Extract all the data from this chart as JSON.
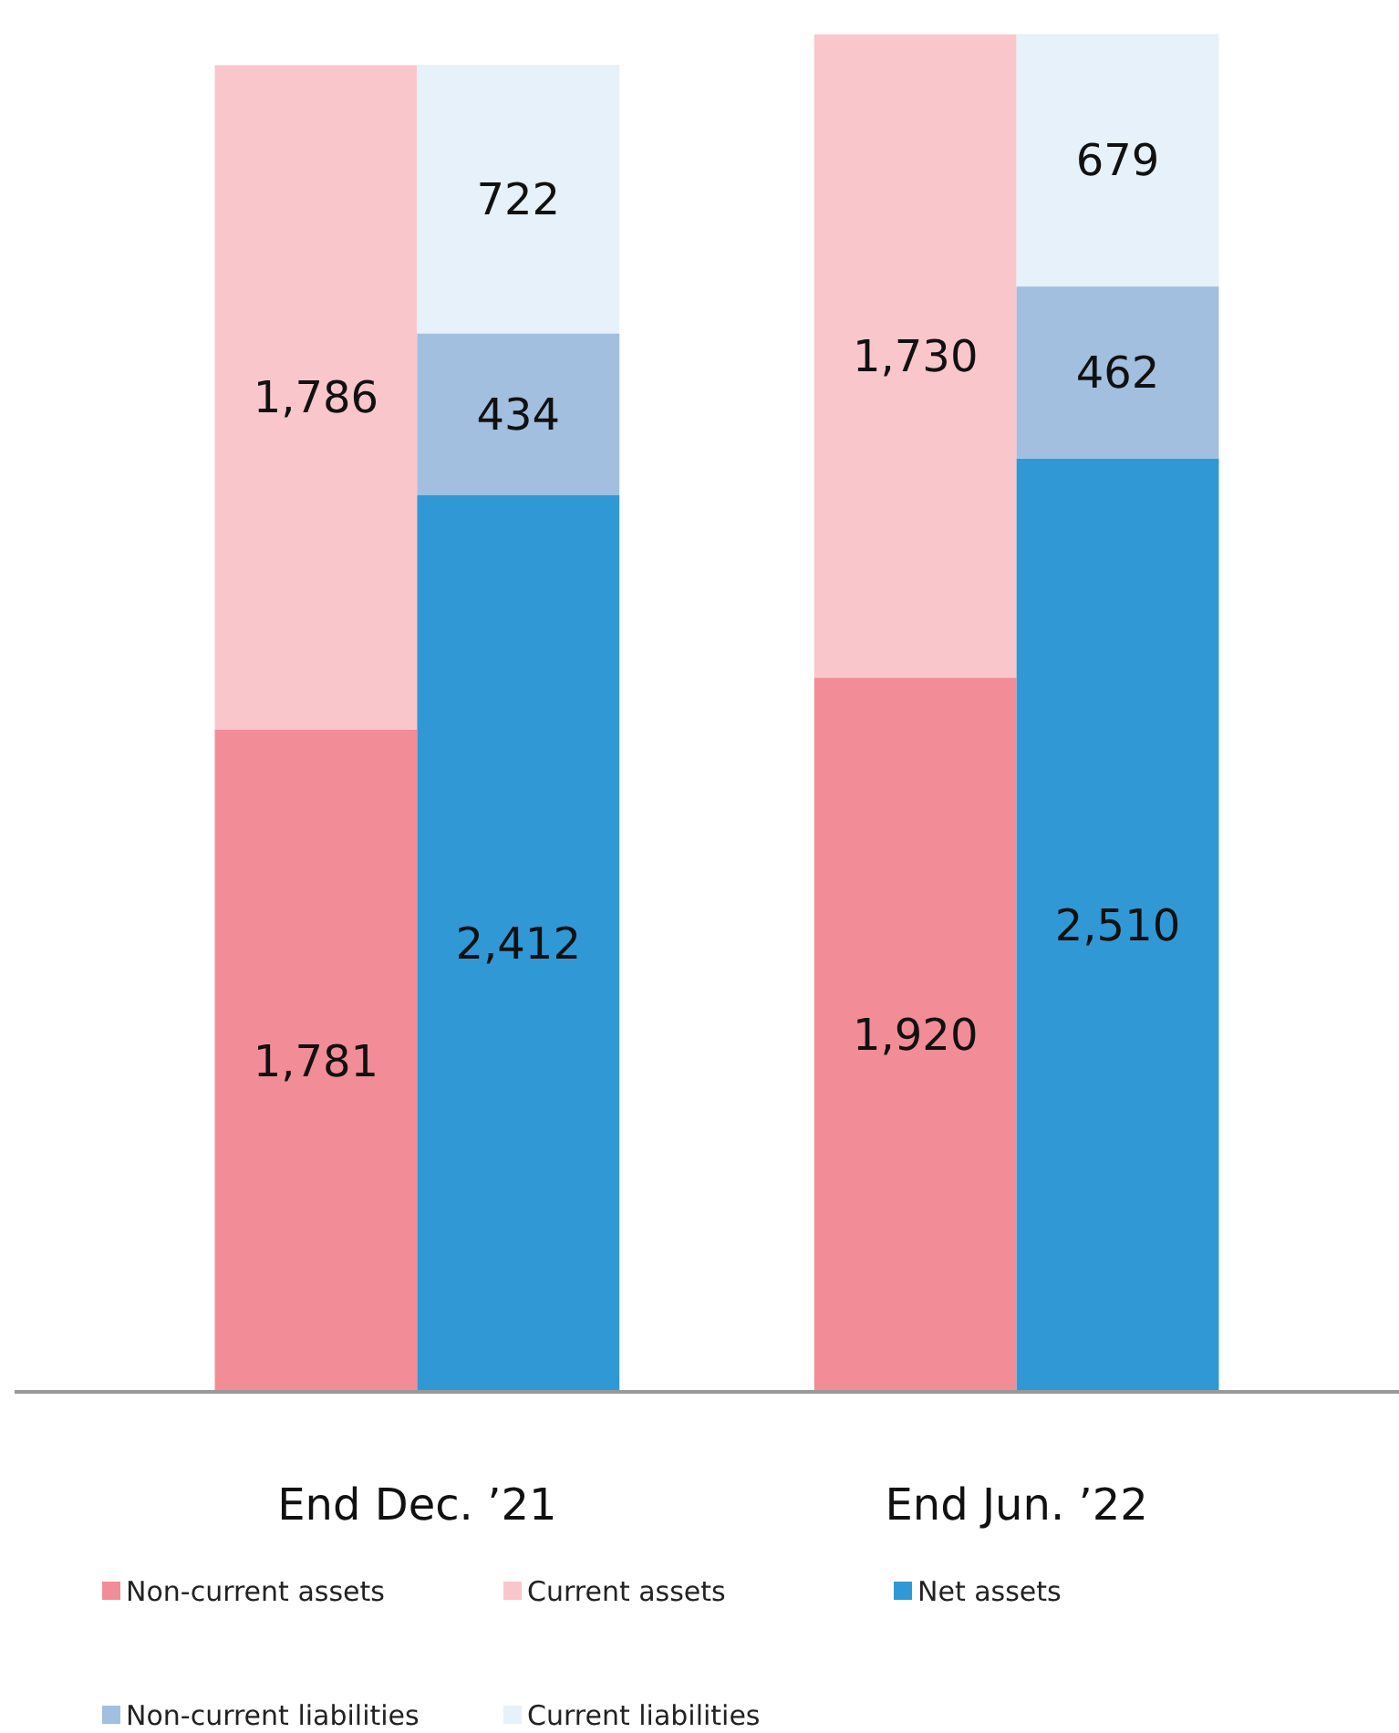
{
  "chart_data": {
    "type": "bar",
    "stacked": true,
    "legend": "bottom",
    "categories": [
      null,
      null,
      null,
      null
    ],
    "annotations": [
      "End Dec. ’21",
      "End Jun. ’22"
    ],
    "series": [
      {
        "name": "Non-current assets",
        "color": "#f28c96",
        "values": [
          1781,
          null,
          1920,
          null
        ],
        "value_labels": [
          "1,781",
          null,
          "1,920",
          null
        ]
      },
      {
        "name": "Current assets",
        "color": "#f9c6cc",
        "values": [
          1786,
          null,
          1730,
          null
        ],
        "value_labels": [
          "1,786",
          null,
          "1,730",
          null
        ]
      },
      {
        "name": "Net assets",
        "color": "#3099d5",
        "values": [
          null,
          2412,
          null,
          2510
        ],
        "value_labels": [
          null,
          "2,412",
          null,
          "2,510"
        ]
      },
      {
        "name": "Non-current liabilities",
        "color": "#a2bfe0",
        "values": [
          null,
          434,
          null,
          462
        ],
        "value_labels": [
          null,
          "434",
          null,
          "462"
        ]
      },
      {
        "name": "Current liabilities",
        "color": "#e6f1f9",
        "values": [
          null,
          722,
          null,
          679
        ],
        "value_labels": [
          null,
          "722",
          null,
          "679"
        ]
      }
    ]
  }
}
